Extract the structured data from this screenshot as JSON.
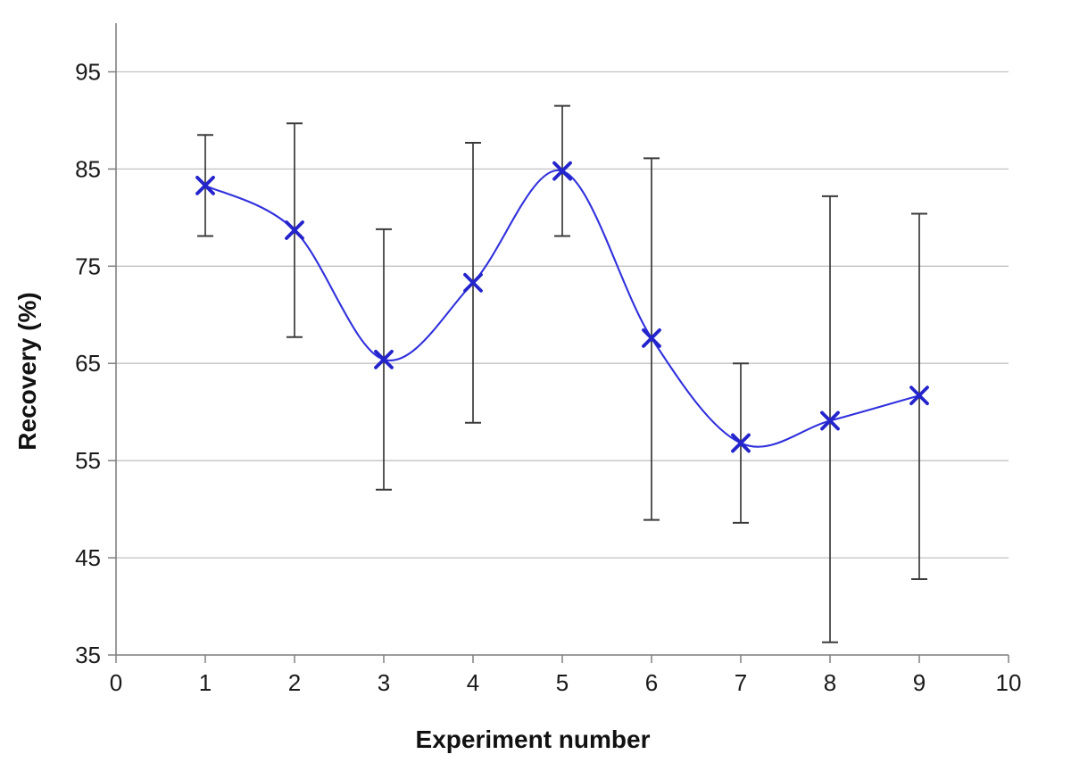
{
  "chart_data": {
    "type": "line",
    "title": "",
    "xlabel": "Experiment number",
    "ylabel": "Recovery (%)",
    "legend": "none",
    "grid": "horizontal-major",
    "line_smoothed": true,
    "marker": "x",
    "xlim": [
      0,
      10
    ],
    "ylim": [
      35,
      100
    ],
    "x_ticks": [
      0,
      1,
      2,
      3,
      4,
      5,
      6,
      7,
      8,
      9,
      10
    ],
    "y_ticks": [
      35,
      45,
      55,
      65,
      75,
      85,
      95
    ],
    "series": [
      {
        "name": "Recovery",
        "x": [
          1,
          2,
          3,
          4,
          5,
          6,
          7,
          8,
          9
        ],
        "y": [
          83.3,
          78.7,
          65.4,
          73.3,
          84.8,
          67.6,
          56.8,
          59.1,
          61.7
        ],
        "error_low": [
          78.1,
          67.7,
          52.0,
          58.9,
          78.1,
          48.9,
          48.6,
          36.3,
          42.8
        ],
        "error_high": [
          88.5,
          89.7,
          78.8,
          87.7,
          91.5,
          86.1,
          65.0,
          82.2,
          80.4
        ]
      }
    ],
    "colors": {
      "line": "#3030dc",
      "marker": "#2424cc",
      "grid": "#c2c2c2",
      "axis": "#808080",
      "error_bar": "#3a3a3a",
      "text": "#1a1a1a"
    }
  }
}
